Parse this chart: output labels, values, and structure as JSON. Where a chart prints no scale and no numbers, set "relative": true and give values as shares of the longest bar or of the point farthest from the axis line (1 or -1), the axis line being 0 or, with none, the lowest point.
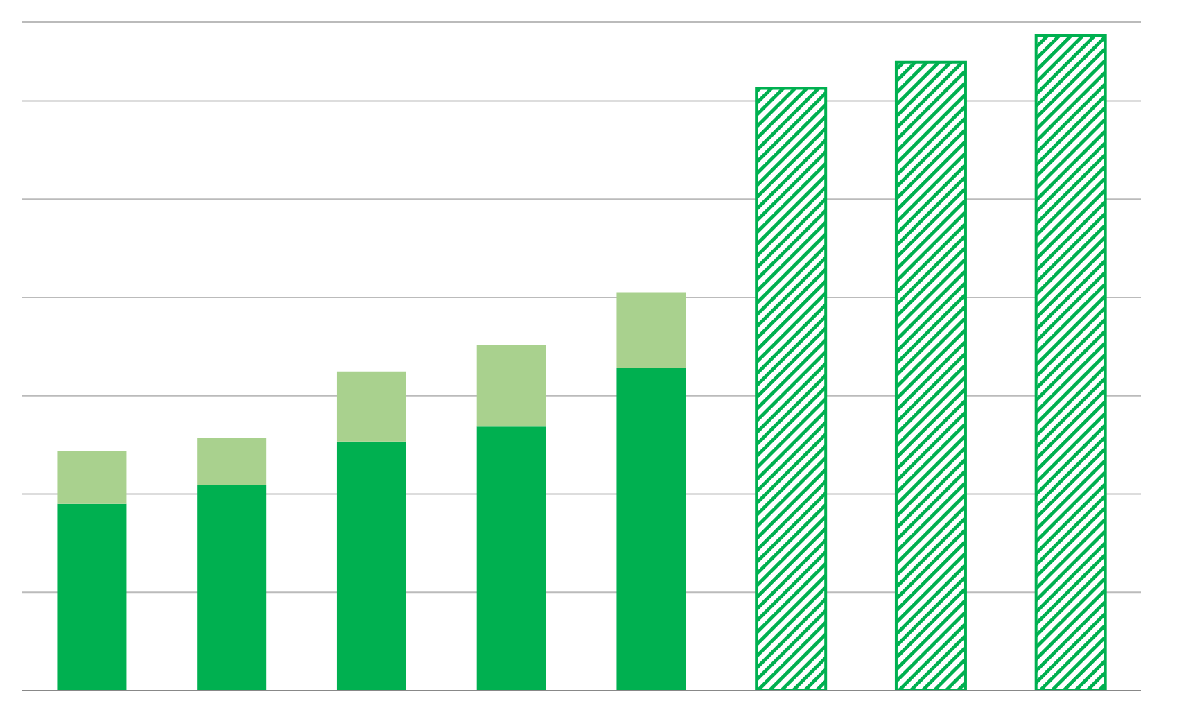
{
  "chart_data": {
    "type": "bar",
    "stacked": true,
    "relative": true,
    "grid": "y",
    "legend": false,
    "categories": [
      null,
      null,
      null,
      null,
      null,
      null,
      null,
      null
    ],
    "series": [
      {
        "color": "#00b050",
        "values": [
          0.285,
          0.314,
          0.38,
          0.403,
          0.492,
          null,
          null,
          null
        ]
      },
      {
        "color": "#a9d18e",
        "values": [
          0.081,
          0.072,
          0.107,
          0.124,
          0.116,
          null,
          null,
          null
        ]
      },
      {
        "color": "#00b050",
        "values": [
          null,
          null,
          null,
          null,
          null,
          0.919,
          0.959,
          1
        ]
      }
    ]
  }
}
